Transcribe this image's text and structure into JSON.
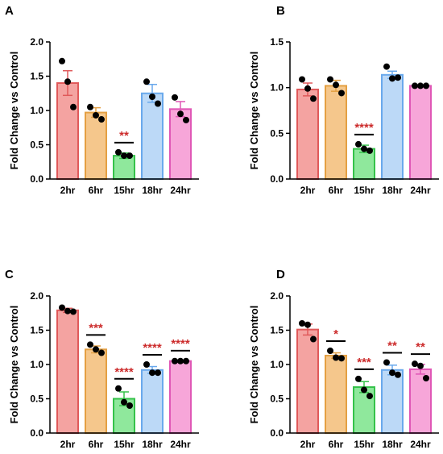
{
  "chart_data": [
    {
      "panel": "A",
      "type": "bar",
      "ylabel": "Fold Change vs Control",
      "ylim": [
        0,
        2.0
      ],
      "yticks": [
        "0.0",
        "0.5",
        "1.0",
        "1.5",
        "2.0"
      ],
      "categories": [
        "2hr",
        "6hr",
        "15hr",
        "18hr",
        "24hr"
      ],
      "values": [
        1.4,
        0.97,
        0.34,
        1.25,
        1.02
      ],
      "errors": [
        0.18,
        0.07,
        0.04,
        0.13,
        0.11
      ],
      "points": [
        [
          1.72,
          1.42,
          1.05
        ],
        [
          1.05,
          0.93,
          0.87
        ],
        [
          0.39,
          0.34,
          0.34
        ],
        [
          1.42,
          1.2,
          1.1
        ],
        [
          1.19,
          0.95,
          0.86
        ]
      ],
      "significance": [
        "",
        "",
        "**",
        "",
        ""
      ]
    },
    {
      "panel": "B",
      "type": "bar",
      "ylabel": "Fold Change vs Control",
      "ylim": [
        0,
        1.5
      ],
      "yticks": [
        "0.0",
        "0.5",
        "1.0",
        "1.5"
      ],
      "categories": [
        "2hr",
        "6hr",
        "15hr",
        "18hr",
        "24hr"
      ],
      "values": [
        0.98,
        1.02,
        0.33,
        1.14,
        1.02
      ],
      "errors": [
        0.07,
        0.06,
        0.04,
        0.04,
        0.01
      ],
      "points": [
        [
          1.09,
          0.99,
          0.88
        ],
        [
          1.09,
          1.03,
          0.94
        ],
        [
          0.38,
          0.33,
          0.31
        ],
        [
          1.23,
          1.1,
          1.11
        ],
        [
          1.02,
          1.02,
          1.02
        ]
      ],
      "significance": [
        "",
        "",
        "****",
        "",
        ""
      ]
    },
    {
      "panel": "C",
      "type": "bar",
      "ylabel": "Fold Change vs Control",
      "ylim": [
        0,
        2.0
      ],
      "yticks": [
        "0.0",
        "0.5",
        "1.0",
        "1.5",
        "2.0"
      ],
      "categories": [
        "2hr",
        "6hr",
        "15hr",
        "18hr",
        "24hr"
      ],
      "values": [
        1.79,
        1.22,
        0.5,
        0.92,
        1.05
      ],
      "errors": [
        0.03,
        0.05,
        0.1,
        0.05,
        0.01
      ],
      "points": [
        [
          1.83,
          1.78,
          1.77
        ],
        [
          1.29,
          1.22,
          1.17
        ],
        [
          0.65,
          0.45,
          0.4
        ],
        [
          1.0,
          0.88,
          0.88
        ],
        [
          1.05,
          1.05,
          1.05
        ]
      ],
      "significance": [
        "",
        "***",
        "****",
        "****",
        "****"
      ]
    },
    {
      "panel": "D",
      "type": "bar",
      "ylabel": "Fold Change vs Control",
      "ylim": [
        0,
        2.0
      ],
      "yticks": [
        "0.0",
        "0.5",
        "1.0",
        "1.5",
        "2.0"
      ],
      "categories": [
        "2hr",
        "6hr",
        "15hr",
        "18hr",
        "24hr"
      ],
      "values": [
        1.51,
        1.13,
        0.67,
        0.92,
        0.93
      ],
      "errors": [
        0.08,
        0.04,
        0.08,
        0.07,
        0.07
      ],
      "points": [
        [
          1.6,
          1.58,
          1.37
        ],
        [
          1.2,
          1.1,
          1.09
        ],
        [
          0.79,
          0.63,
          0.54
        ],
        [
          1.03,
          0.88,
          0.85
        ],
        [
          1.01,
          0.98,
          0.8
        ]
      ],
      "significance": [
        "",
        "*",
        "***",
        "**",
        "**"
      ]
    }
  ],
  "colors": {
    "fill": [
      "#f4a3a1",
      "#f5c78c",
      "#8fe89c",
      "#bcd9f7",
      "#f7a6d9"
    ],
    "stroke": [
      "#e0595a",
      "#e4a043",
      "#35c24a",
      "#6aa9ec",
      "#e057b6"
    ],
    "significance": "#cc2b2b"
  }
}
